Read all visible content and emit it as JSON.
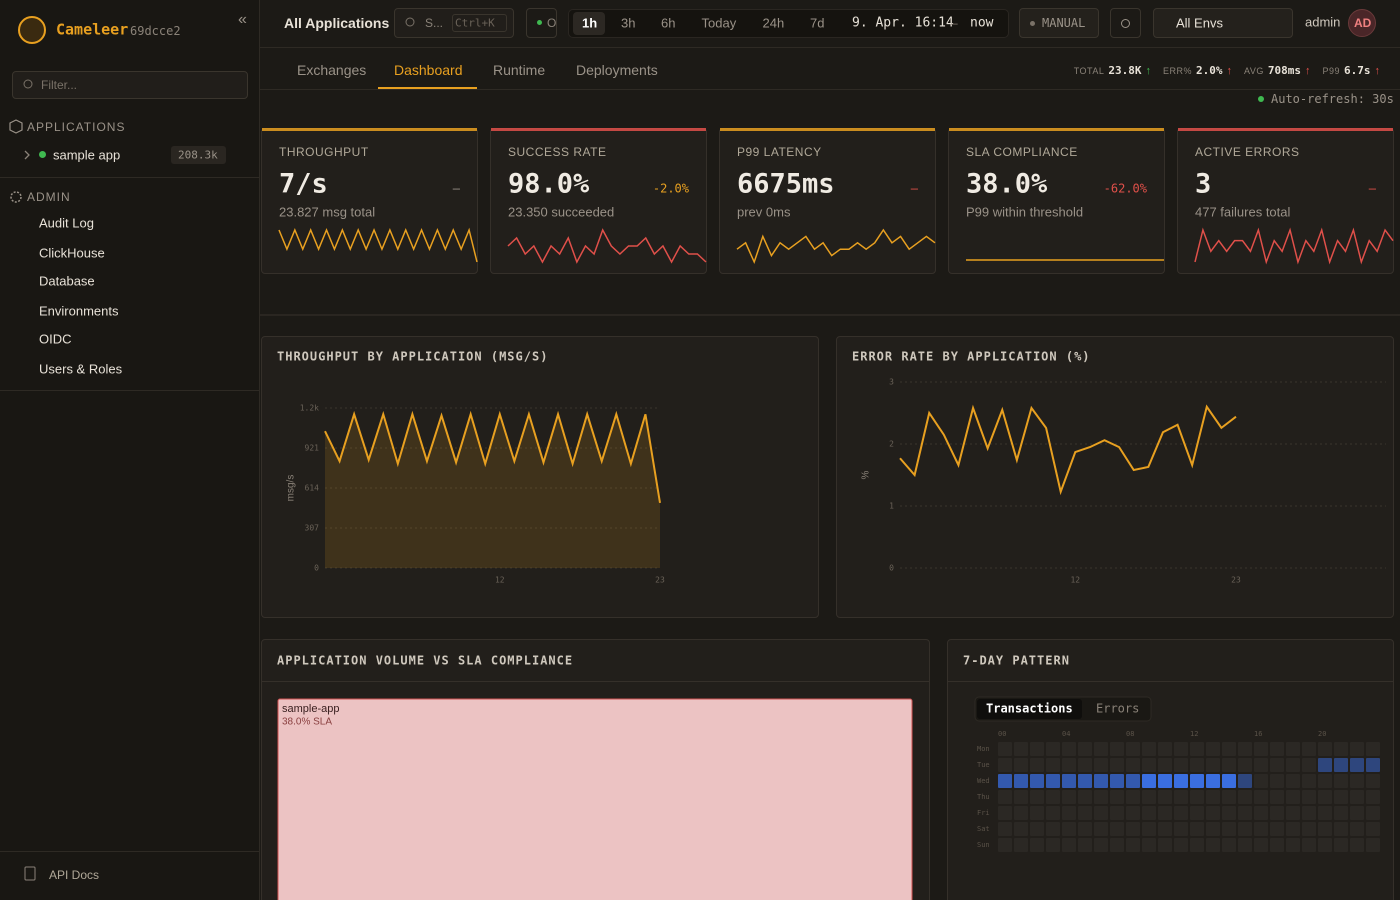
{
  "sidebar": {
    "brand": "Cameleer",
    "version": "69dcce2",
    "collapse": "«",
    "filter_placeholder": "Filter...",
    "applications_header": "APPLICATIONS",
    "apps": [
      {
        "name": "sample app",
        "count": "208.3k"
      }
    ],
    "admin_header": "ADMIN",
    "admin_items": [
      "Audit Log",
      "ClickHouse",
      "Database",
      "Environments",
      "OIDC",
      "Users & Roles"
    ],
    "footer_link": "API Docs"
  },
  "topbar": {
    "scope": "All Applications",
    "search": "S...",
    "shortcut": "Ctrl+K",
    "status": "O",
    "ranges": [
      "1h",
      "3h",
      "6h",
      "Today",
      "24h",
      "7d"
    ],
    "active_range": "1h",
    "from": "9. Apr. 16:14",
    "separator": "–",
    "to": "now",
    "refresh_mode": "MANUAL",
    "environment": "All Envs",
    "user": "admin",
    "avatar": "AD"
  },
  "tabs": {
    "items": [
      "Exchanges",
      "Dashboard",
      "Runtime",
      "Deployments"
    ],
    "active": "Dashboard"
  },
  "stats": [
    {
      "label": "TOTAL",
      "value": "23.8K",
      "trend": "↑",
      "color": "#3fb950"
    },
    {
      "label": "ERR%",
      "value": "2.0%",
      "trend": "↑",
      "color": "#e0504a"
    },
    {
      "label": "AVG",
      "value": "708ms",
      "trend": "↑",
      "color": "#e0504a"
    },
    {
      "label": "P99",
      "value": "6.7s",
      "trend": "↑",
      "color": "#e0504a"
    }
  ],
  "auto_refresh": "Auto-refresh: 30s",
  "kpis": [
    {
      "label": "THROUGHPUT",
      "value": "7/s",
      "delta": "–",
      "detail": "23.827 msg total",
      "color": "#e8a020",
      "delta_color": "#9a9288",
      "spark": [
        8,
        5,
        8,
        5,
        8,
        5,
        8,
        5,
        8,
        5,
        8,
        5,
        8,
        5,
        8,
        5,
        8,
        5,
        8,
        5,
        8,
        5,
        8,
        5,
        8,
        3
      ]
    },
    {
      "label": "SUCCESS RATE",
      "value": "98.0%",
      "delta": "-2.0%",
      "detail": "23.350 succeeded",
      "color": "#e0504a",
      "delta_color": "#e8a020",
      "spark": [
        98,
        99,
        97,
        98,
        96,
        98,
        97,
        99,
        96,
        98,
        97,
        100,
        98,
        97,
        98,
        98,
        99,
        97,
        98,
        96,
        98,
        97,
        97,
        96
      ]
    },
    {
      "label": "P99 LATENCY",
      "value": "6675ms",
      "delta": "–",
      "detail": "prev 0ms",
      "color": "#e8a020",
      "delta_color": "#e0504a",
      "spark": [
        3,
        4,
        1,
        5,
        2,
        4,
        3,
        4,
        5,
        3,
        4,
        2,
        3,
        3,
        4,
        3,
        4,
        6,
        4,
        5,
        3,
        4,
        5,
        4
      ]
    },
    {
      "label": "SLA COMPLIANCE",
      "value": "38.0%",
      "delta": "-62.0%",
      "detail": "P99 within threshold",
      "color": "#e8a020",
      "delta_color": "#e0504a",
      "spark": [
        38,
        38,
        38,
        38,
        38,
        38,
        38,
        38,
        38,
        38,
        38,
        38
      ]
    },
    {
      "label": "ACTIVE ERRORS",
      "value": "3",
      "delta": "–",
      "detail": "477 failures total",
      "color": "#e0504a",
      "delta_color": "#e0504a",
      "spark": [
        2,
        5,
        3,
        4,
        3,
        4,
        4,
        3,
        5,
        2,
        4,
        3,
        5,
        2,
        4,
        3,
        5,
        2,
        4,
        3,
        5,
        2,
        4,
        3,
        5,
        4
      ]
    }
  ],
  "chart_data": [
    {
      "type": "area",
      "title": "THROUGHPUT BY APPLICATION (MSG/S)",
      "y_label": "msg/s",
      "categories": [
        null,
        null,
        null,
        null,
        null,
        null,
        null,
        null,
        null,
        null,
        null,
        null,
        "12",
        null,
        null,
        null,
        null,
        null,
        null,
        null,
        null,
        null,
        null,
        "23"
      ],
      "values": [
        1050,
        820,
        1180,
        830,
        1180,
        800,
        1180,
        820,
        1170,
        810,
        1180,
        800,
        1180,
        820,
        1180,
        810,
        1180,
        800,
        1180,
        820,
        1180,
        800,
        1180,
        500
      ],
      "color": "#e8a020",
      "ylim": [
        0,
        1228
      ],
      "yticks": [
        0,
        307,
        614,
        921,
        {
          "value": 1228,
          "label": "1.2k"
        }
      ],
      "grid": true
    },
    {
      "type": "line",
      "title": "ERROR RATE BY APPLICATION (%)",
      "y_label": "%",
      "categories": [
        null,
        null,
        null,
        null,
        null,
        null,
        null,
        null,
        null,
        null,
        null,
        null,
        "12",
        null,
        null,
        null,
        null,
        null,
        null,
        null,
        null,
        null,
        null,
        "23"
      ],
      "values": [
        1.77,
        1.5,
        2.5,
        2.15,
        1.66,
        2.58,
        1.93,
        2.55,
        1.74,
        2.58,
        2.26,
        1.23,
        1.87,
        1.95,
        2.06,
        1.95,
        1.58,
        1.63,
        2.19,
        2.31,
        1.66,
        2.6,
        2.26,
        2.44
      ],
      "color": "#e8a020",
      "ylim": [
        0,
        3
      ],
      "yticks": [
        0,
        1,
        2,
        3
      ],
      "grid": true
    }
  ],
  "treemap": {
    "title": "APPLICATION VOLUME VS SLA COMPLIANCE",
    "items": [
      {
        "name": "sample-app",
        "sla": "38.0% SLA",
        "color": "#ecc3c3"
      }
    ]
  },
  "heatmap": {
    "title": "7-DAY PATTERN",
    "tabs": [
      "Transactions",
      "Errors"
    ],
    "active_tab": "Transactions",
    "hours": [
      "00",
      "04",
      "08",
      "12",
      "16",
      "20"
    ],
    "days": [
      "Mon",
      "Tue",
      "Wed",
      "Thu",
      "Fri",
      "Sat",
      "Sun"
    ],
    "color": "#3a6ee0",
    "values": [
      [
        0,
        0,
        0,
        0,
        0,
        0,
        0,
        0,
        0,
        0,
        0,
        0,
        0,
        0,
        0,
        0,
        0,
        0,
        0,
        0,
        0,
        0,
        0,
        0
      ],
      [
        0,
        0,
        0,
        0,
        0,
        0,
        0,
        0,
        0,
        0,
        0,
        0,
        0,
        0,
        0,
        0,
        0,
        0,
        0,
        0,
        1,
        1,
        1,
        1
      ],
      [
        2,
        2,
        2,
        2,
        2,
        2,
        2,
        2,
        2,
        3,
        3,
        3,
        3,
        3,
        3,
        1,
        0,
        0,
        0,
        0,
        0,
        0,
        0,
        0
      ],
      [
        0,
        0,
        0,
        0,
        0,
        0,
        0,
        0,
        0,
        0,
        0,
        0,
        0,
        0,
        0,
        0,
        0,
        0,
        0,
        0,
        0,
        0,
        0,
        0
      ],
      [
        0,
        0,
        0,
        0,
        0,
        0,
        0,
        0,
        0,
        0,
        0,
        0,
        0,
        0,
        0,
        0,
        0,
        0,
        0,
        0,
        0,
        0,
        0,
        0
      ],
      [
        0,
        0,
        0,
        0,
        0,
        0,
        0,
        0,
        0,
        0,
        0,
        0,
        0,
        0,
        0,
        0,
        0,
        0,
        0,
        0,
        0,
        0,
        0,
        0
      ],
      [
        0,
        0,
        0,
        0,
        0,
        0,
        0,
        0,
        0,
        0,
        0,
        0,
        0,
        0,
        0,
        0,
        0,
        0,
        0,
        0,
        0,
        0,
        0,
        0
      ]
    ]
  }
}
